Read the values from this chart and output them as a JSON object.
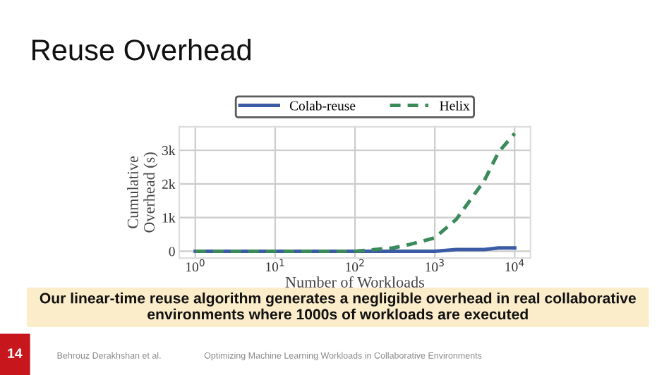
{
  "chart_data": {
    "type": "line",
    "title": "Reuse Overhead",
    "xlabel": "Number of Workloads",
    "ylabel": "Cumulative\nOverhead (s)",
    "x": [
      1,
      10,
      100,
      300,
      480,
      1000,
      1860,
      4170,
      6300,
      10000
    ],
    "series": [
      {
        "name": "Colab-reuse",
        "color": "#3b5ba5",
        "line_style": "solid",
        "values": [
          0,
          0,
          0,
          0,
          0,
          0,
          50,
          50,
          100,
          100
        ]
      },
      {
        "name": "Helix",
        "color": "#3a8a5a",
        "line_style": "dashed",
        "values": [
          0,
          0,
          0,
          100,
          200,
          400,
          950,
          2100,
          2950,
          3500
        ]
      }
    ],
    "log": "x",
    "xlim": [
      0.63,
      15800
    ],
    "xticks": [
      {
        "value": 1,
        "label": "10$^{0}$"
      },
      {
        "value": 10,
        "label": "10$^{1}$"
      },
      {
        "value": 100,
        "label": "10$^{2}$"
      },
      {
        "value": 1000,
        "label": "10$^{3}$"
      },
      {
        "value": 10000,
        "label": "10$^{4}$"
      }
    ],
    "ylim": [
      -200,
      3700
    ],
    "yticks": [
      0,
      {
        "value": 1000,
        "label": "1k"
      },
      {
        "value": 2000,
        "label": "2k"
      },
      {
        "value": 3000,
        "label": "3k"
      }
    ],
    "grid": true,
    "legend": "top",
    "marker": "none",
    "annotations": [
      "Our linear-time reuse algorithm generates a negligible overhead in real collaborative environments where 1000s of workloads are executed",
      "14",
      "Behrouz Derakhshan et al.",
      "Optimizing Machine Learning Workloads in Collaborative Environments"
    ]
  }
}
